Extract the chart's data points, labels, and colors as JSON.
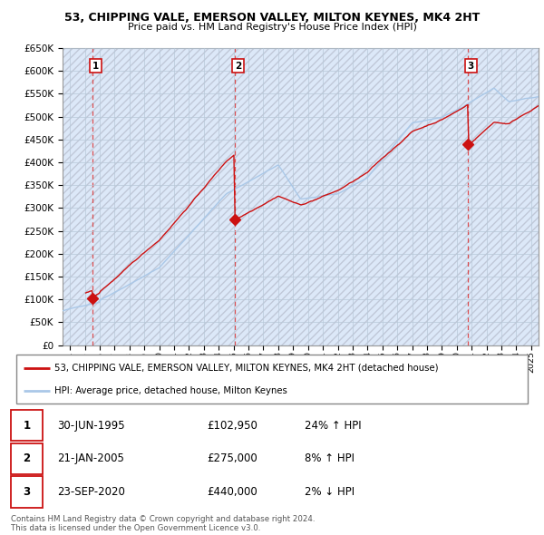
{
  "title": "53, CHIPPING VALE, EMERSON VALLEY, MILTON KEYNES, MK4 2HT",
  "subtitle": "Price paid vs. HM Land Registry's House Price Index (HPI)",
  "ylim": [
    0,
    650000
  ],
  "yticks": [
    0,
    50000,
    100000,
    150000,
    200000,
    250000,
    300000,
    350000,
    400000,
    450000,
    500000,
    550000,
    600000,
    650000
  ],
  "ytick_labels": [
    "£0",
    "£50K",
    "£100K",
    "£150K",
    "£200K",
    "£250K",
    "£300K",
    "£350K",
    "£400K",
    "£450K",
    "£500K",
    "£550K",
    "£600K",
    "£650K"
  ],
  "hpi_color": "#aac8e8",
  "price_color": "#cc1111",
  "dashed_color": "#dd3333",
  "background_color": "#dce8f8",
  "sale_dates": [
    1995.5,
    2005.08,
    2020.73
  ],
  "sale_prices": [
    102950,
    275000,
    440000
  ],
  "sale_labels": [
    "1",
    "2",
    "3"
  ],
  "legend_line1": "53, CHIPPING VALE, EMERSON VALLEY, MILTON KEYNES, MK4 2HT (detached house)",
  "legend_line2": "HPI: Average price, detached house, Milton Keynes",
  "table_rows": [
    {
      "num": "1",
      "date": "30-JUN-1995",
      "price": "£102,950",
      "hpi": "24% ↑ HPI"
    },
    {
      "num": "2",
      "date": "21-JAN-2005",
      "price": "£275,000",
      "hpi": "8% ↑ HPI"
    },
    {
      "num": "3",
      "date": "23-SEP-2020",
      "price": "£440,000",
      "hpi": "2% ↓ HPI"
    }
  ],
  "footer": "Contains HM Land Registry data © Crown copyright and database right 2024.\nThis data is licensed under the Open Government Licence v3.0.",
  "xmin": 1993.5,
  "xmax": 2025.5
}
